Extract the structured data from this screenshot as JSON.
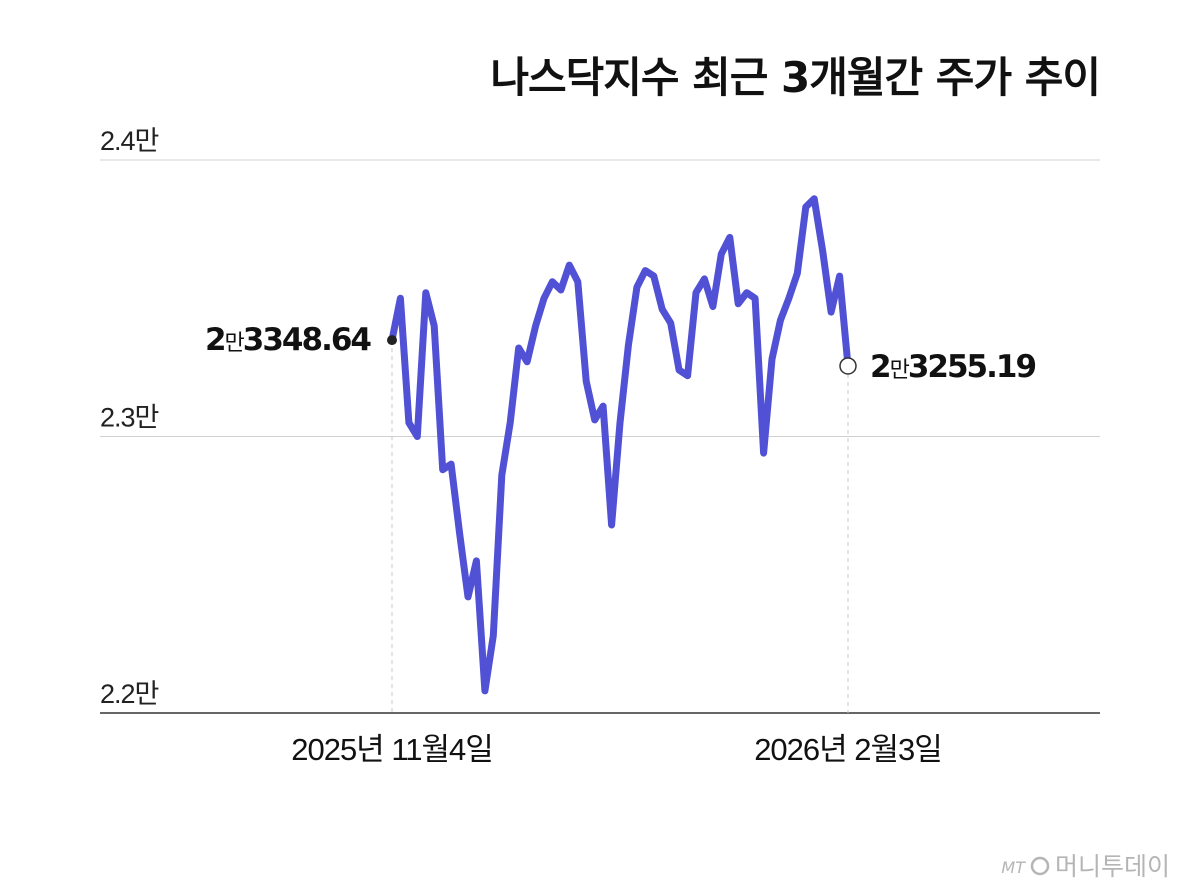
{
  "chart_data": {
    "type": "line",
    "title": "나스닥지수 최근 3개월간 주가 추이",
    "ylim": [
      22000,
      24000
    ],
    "yticks": [
      {
        "value": 24000,
        "label": "2.4만"
      },
      {
        "value": 23000,
        "label": "2.3만"
      },
      {
        "value": 22000,
        "label": "2.2만"
      }
    ],
    "x_labels": [
      {
        "index": 0,
        "label": "2025년 11월4일"
      },
      {
        "index": 57,
        "label": "2026년 2월3일"
      }
    ],
    "grid": true,
    "colors": {
      "line": "#5151d6",
      "grid": "#d0d0d0",
      "axis": "#333333"
    },
    "series": [
      {
        "values": [
          23348.64,
          23500,
          23050,
          23000,
          23520,
          23400,
          22880,
          22900,
          22650,
          22420,
          22550,
          22080,
          22280,
          22860,
          23050,
          23320,
          23270,
          23400,
          23500,
          23560,
          23530,
          23620,
          23560,
          23200,
          23060,
          23110,
          22680,
          23050,
          23330,
          23540,
          23600,
          23580,
          23460,
          23410,
          23240,
          23220,
          23520,
          23570,
          23470,
          23660,
          23720,
          23480,
          23520,
          23500,
          22940,
          23280,
          23420,
          23500,
          23590,
          23830,
          23860,
          23670,
          23450,
          23580,
          23255.19
        ]
      }
    ],
    "annotations": {
      "start": {
        "man": "2",
        "unit": "만",
        "rest": "3348.64"
      },
      "end": {
        "man": "2",
        "unit": "만",
        "rest": "3255.19"
      }
    }
  },
  "watermark": {
    "mt": "MT",
    "brand": "머니투데이"
  }
}
